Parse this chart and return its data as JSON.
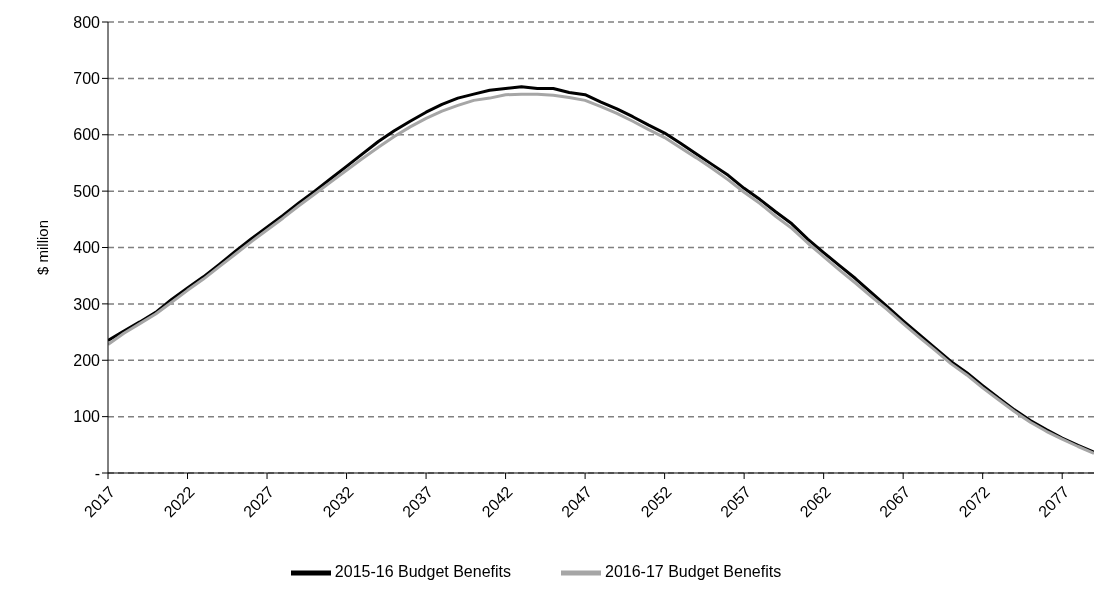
{
  "chart_data": {
    "type": "line",
    "ylabel": "$ million",
    "x": [
      2017,
      2018,
      2019,
      2020,
      2021,
      2022,
      2023,
      2024,
      2025,
      2026,
      2027,
      2028,
      2029,
      2030,
      2031,
      2032,
      2033,
      2034,
      2035,
      2036,
      2037,
      2038,
      2039,
      2040,
      2041,
      2042,
      2043,
      2044,
      2045,
      2046,
      2047,
      2048,
      2049,
      2050,
      2051,
      2052,
      2053,
      2054,
      2055,
      2056,
      2057,
      2058,
      2059,
      2060,
      2061,
      2062,
      2063,
      2064,
      2065,
      2066,
      2067,
      2068,
      2069,
      2070,
      2071,
      2072,
      2073,
      2074,
      2075,
      2076,
      2077,
      2078,
      2079
    ],
    "series": [
      {
        "name": "2015-16 Budget Benefits",
        "color": "#000000",
        "values": [
          235,
          252,
          268,
          285,
          308,
          328,
          348,
          370,
          393,
          415,
          436,
          457,
          479,
          500,
          522,
          544,
          566,
          588,
          607,
          624,
          640,
          654,
          665,
          672,
          679,
          682,
          685,
          682,
          682,
          675,
          671,
          658,
          646,
          632,
          617,
          603,
          585,
          566,
          547,
          528,
          505,
          485,
          463,
          442,
          415,
          391,
          368,
          345,
          320,
          295,
          270,
          246,
          222,
          198,
          178,
          155,
          133,
          112,
          93,
          77,
          62,
          49,
          37
        ]
      },
      {
        "name": "2016-17 Budget Benefits",
        "color": "#a6a6a6",
        "values": [
          228,
          248,
          265,
          282,
          303,
          324,
          344,
          366,
          388,
          410,
          431,
          452,
          474,
          495,
          516,
          537,
          558,
          578,
          597,
          614,
          629,
          642,
          652,
          661,
          665,
          671,
          672,
          672,
          670,
          666,
          661,
          650,
          638,
          624,
          609,
          595,
          577,
          559,
          540,
          520,
          498,
          478,
          455,
          434,
          408,
          384,
          360,
          337,
          313,
          290,
          265,
          241,
          218,
          194,
          174,
          151,
          130,
          109,
          90,
          74,
          60,
          47,
          35
        ]
      }
    ],
    "xlim": [
      2017,
      2079
    ],
    "xticks": [
      2017,
      2022,
      2027,
      2032,
      2037,
      2042,
      2047,
      2052,
      2057,
      2062,
      2067,
      2072,
      2077
    ],
    "ylim": [
      0,
      800
    ],
    "yticks": [
      {
        "value": 0,
        "label": "-"
      },
      100,
      200,
      300,
      400,
      500,
      600,
      700,
      800
    ],
    "grid": "y",
    "legend": "bottom",
    "marker": "none",
    "line_style": "solid"
  }
}
